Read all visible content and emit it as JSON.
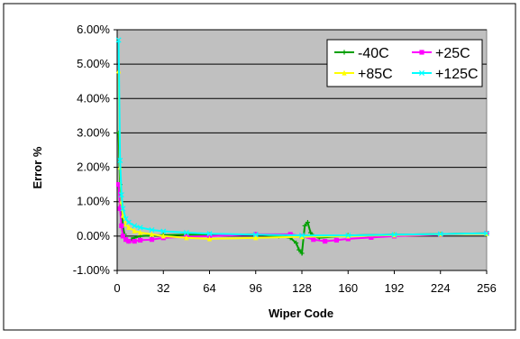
{
  "chart_data": {
    "type": "scatter",
    "xlabel": "Wiper Code",
    "ylabel": "Error %",
    "xlim": [
      0,
      256
    ],
    "ylim": [
      -1,
      6
    ],
    "x_ticks": [
      0,
      32,
      64,
      96,
      128,
      160,
      192,
      224,
      256
    ],
    "x_tick_labels": [
      "0",
      "32",
      "64",
      "96",
      "128",
      "160",
      "192",
      "224",
      "256"
    ],
    "y_ticks": [
      -1,
      0,
      1,
      2,
      3,
      4,
      5,
      6
    ],
    "y_tick_labels": [
      "-1.00%",
      "0.00%",
      "1.00%",
      "2.00%",
      "3.00%",
      "4.00%",
      "5.00%",
      "6.00%"
    ],
    "grid": "horizontal",
    "legend_position": "top-right",
    "plot_background": "#c0c0c0",
    "series": [
      {
        "name": "-40C",
        "color": "#00a000",
        "marker": "plus",
        "points": [
          [
            1,
            3.0
          ],
          [
            2,
            1.5
          ],
          [
            3,
            0.8
          ],
          [
            4,
            0.3
          ],
          [
            5,
            0.05
          ],
          [
            6,
            -0.1
          ],
          [
            8,
            -0.15
          ],
          [
            10,
            -0.1
          ],
          [
            12,
            -0.05
          ],
          [
            16,
            0.0
          ],
          [
            24,
            0.02
          ],
          [
            32,
            0.03
          ],
          [
            48,
            0.04
          ],
          [
            64,
            0.04
          ],
          [
            96,
            0.05
          ],
          [
            112,
            0.0
          ],
          [
            120,
            -0.05
          ],
          [
            124,
            -0.2
          ],
          [
            126,
            -0.4
          ],
          [
            128,
            -0.5
          ],
          [
            130,
            0.3
          ],
          [
            132,
            0.4
          ],
          [
            134,
            0.1
          ],
          [
            136,
            0.0
          ],
          [
            140,
            -0.05
          ],
          [
            160,
            0.02
          ],
          [
            192,
            0.04
          ],
          [
            224,
            0.06
          ],
          [
            256,
            0.08
          ]
        ]
      },
      {
        "name": "+25C",
        "color": "#ff00ff",
        "marker": "square",
        "points": [
          [
            1,
            1.5
          ],
          [
            2,
            0.8
          ],
          [
            3,
            0.3
          ],
          [
            4,
            0.0
          ],
          [
            6,
            -0.1
          ],
          [
            8,
            -0.15
          ],
          [
            12,
            -0.15
          ],
          [
            16,
            -0.12
          ],
          [
            24,
            -0.1
          ],
          [
            32,
            -0.05
          ],
          [
            48,
            -0.02
          ],
          [
            64,
            0.0
          ],
          [
            96,
            0.05
          ],
          [
            120,
            0.05
          ],
          [
            128,
            0.0
          ],
          [
            136,
            -0.1
          ],
          [
            144,
            -0.15
          ],
          [
            152,
            -0.12
          ],
          [
            160,
            -0.08
          ],
          [
            176,
            -0.04
          ],
          [
            192,
            0.0
          ],
          [
            224,
            0.04
          ],
          [
            256,
            0.08
          ]
        ]
      },
      {
        "name": "+85C",
        "color": "#ffff00",
        "marker": "triangle",
        "points": [
          [
            1,
            4.8
          ],
          [
            2,
            2.0
          ],
          [
            3,
            1.0
          ],
          [
            4,
            0.6
          ],
          [
            6,
            0.35
          ],
          [
            8,
            0.25
          ],
          [
            12,
            0.15
          ],
          [
            16,
            0.1
          ],
          [
            24,
            0.05
          ],
          [
            32,
            0.0
          ],
          [
            48,
            -0.05
          ],
          [
            64,
            -0.08
          ],
          [
            96,
            -0.05
          ],
          [
            128,
            -0.02
          ],
          [
            160,
            0.0
          ],
          [
            192,
            0.03
          ],
          [
            224,
            0.05
          ],
          [
            256,
            0.07
          ]
        ]
      },
      {
        "name": "+125C",
        "color": "#00ffff",
        "marker": "x",
        "points": [
          [
            1,
            5.7
          ],
          [
            2,
            2.2
          ],
          [
            3,
            1.2
          ],
          [
            4,
            0.8
          ],
          [
            6,
            0.5
          ],
          [
            8,
            0.4
          ],
          [
            12,
            0.3
          ],
          [
            16,
            0.25
          ],
          [
            24,
            0.18
          ],
          [
            32,
            0.14
          ],
          [
            48,
            0.1
          ],
          [
            64,
            0.07
          ],
          [
            96,
            0.04
          ],
          [
            128,
            0.02
          ],
          [
            160,
            0.02
          ],
          [
            192,
            0.04
          ],
          [
            224,
            0.06
          ],
          [
            256,
            0.08
          ]
        ]
      }
    ]
  }
}
